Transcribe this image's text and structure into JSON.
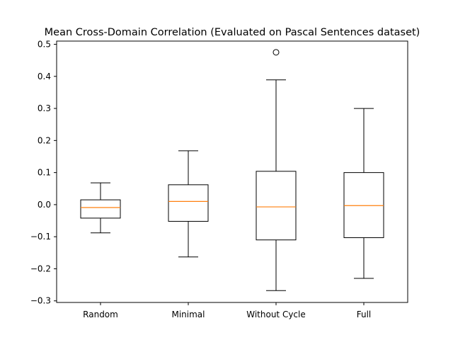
{
  "chart_data": {
    "type": "box",
    "title": "Mean Cross-Domain Correlation (Evaluated on Pascal Sentences dataset)",
    "xlabel": "",
    "ylabel": "",
    "categories": [
      "Random",
      "Minimal",
      "Without Cycle",
      "Full"
    ],
    "yticks": [
      "−0.3",
      "−0.2",
      "−0.1",
      "0.0",
      "0.1",
      "0.2",
      "0.3",
      "0.4",
      "0.5"
    ],
    "ytick_values": [
      -0.3,
      -0.2,
      -0.1,
      0.0,
      0.1,
      0.2,
      0.3,
      0.4,
      0.5
    ],
    "ylim": [
      -0.305,
      0.51
    ],
    "grid": false,
    "boxes": [
      {
        "category": "Random",
        "whisker_low": -0.088,
        "q1": -0.042,
        "median": -0.009,
        "q3": 0.015,
        "whisker_high": 0.068,
        "outliers": []
      },
      {
        "category": "Minimal",
        "whisker_low": -0.163,
        "q1": -0.052,
        "median": 0.01,
        "q3": 0.062,
        "whisker_high": 0.168,
        "outliers": []
      },
      {
        "category": "Without Cycle",
        "whisker_low": -0.268,
        "q1": -0.11,
        "median": -0.007,
        "q3": 0.104,
        "whisker_high": 0.389,
        "outliers": [
          0.475
        ]
      },
      {
        "category": "Full",
        "whisker_low": -0.23,
        "q1": -0.103,
        "median": -0.003,
        "q3": 0.1,
        "whisker_high": 0.3,
        "outliers": []
      }
    ],
    "colors": {
      "box": "#000000",
      "median": "#ff7f0e",
      "outlier": "#000000",
      "background": "#ffffff"
    }
  }
}
